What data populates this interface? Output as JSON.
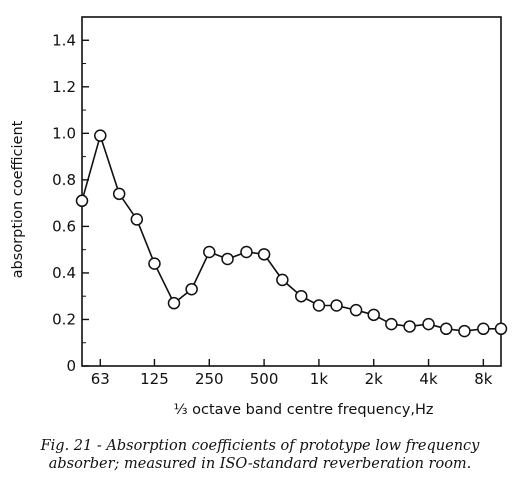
{
  "chart_data": {
    "type": "line",
    "title": "",
    "xlabel": "⅓ octave band centre frequency,Hz",
    "ylabel": "absorption coefficient",
    "x_scale": "log",
    "ylim": [
      0,
      1.5
    ],
    "grid": false,
    "legend": "none",
    "marker": "open-circle",
    "line_color": "#111111",
    "y_ticks": [
      {
        "value": 0,
        "label": "0"
      },
      {
        "value": 0.2,
        "label": "0.2"
      },
      {
        "value": 0.4,
        "label": "0.4"
      },
      {
        "value": 0.6,
        "label": "0.6"
      },
      {
        "value": 0.8,
        "label": "0.8"
      },
      {
        "value": 1.0,
        "label": "1.0"
      },
      {
        "value": 1.2,
        "label": "1.2"
      },
      {
        "value": 1.4,
        "label": "1.4"
      }
    ],
    "x_ticks": [
      {
        "value": 63,
        "label": "63"
      },
      {
        "value": 125,
        "label": "125"
      },
      {
        "value": 250,
        "label": "250"
      },
      {
        "value": 500,
        "label": "500"
      },
      {
        "value": 1000,
        "label": "1k"
      },
      {
        "value": 2000,
        "label": "2k"
      },
      {
        "value": 4000,
        "label": "4k"
      },
      {
        "value": 8000,
        "label": "8k"
      }
    ],
    "x": [
      50,
      63,
      80,
      100,
      125,
      160,
      200,
      250,
      315,
      400,
      500,
      630,
      800,
      1000,
      1250,
      1600,
      2000,
      2500,
      3150,
      4000,
      5000,
      6300,
      8000,
      10000
    ],
    "y": [
      0.71,
      0.99,
      0.74,
      0.63,
      0.44,
      0.27,
      0.33,
      0.49,
      0.46,
      0.49,
      0.48,
      0.37,
      0.3,
      0.26,
      0.26,
      0.24,
      0.22,
      0.18,
      0.17,
      0.18,
      0.16,
      0.15,
      0.16,
      0.16
    ]
  },
  "caption": {
    "line1": "Fig. 21 - Absorption coefficients of prototype low frequency",
    "line2": "absorber; measured in ISO-standard reverberation room."
  }
}
